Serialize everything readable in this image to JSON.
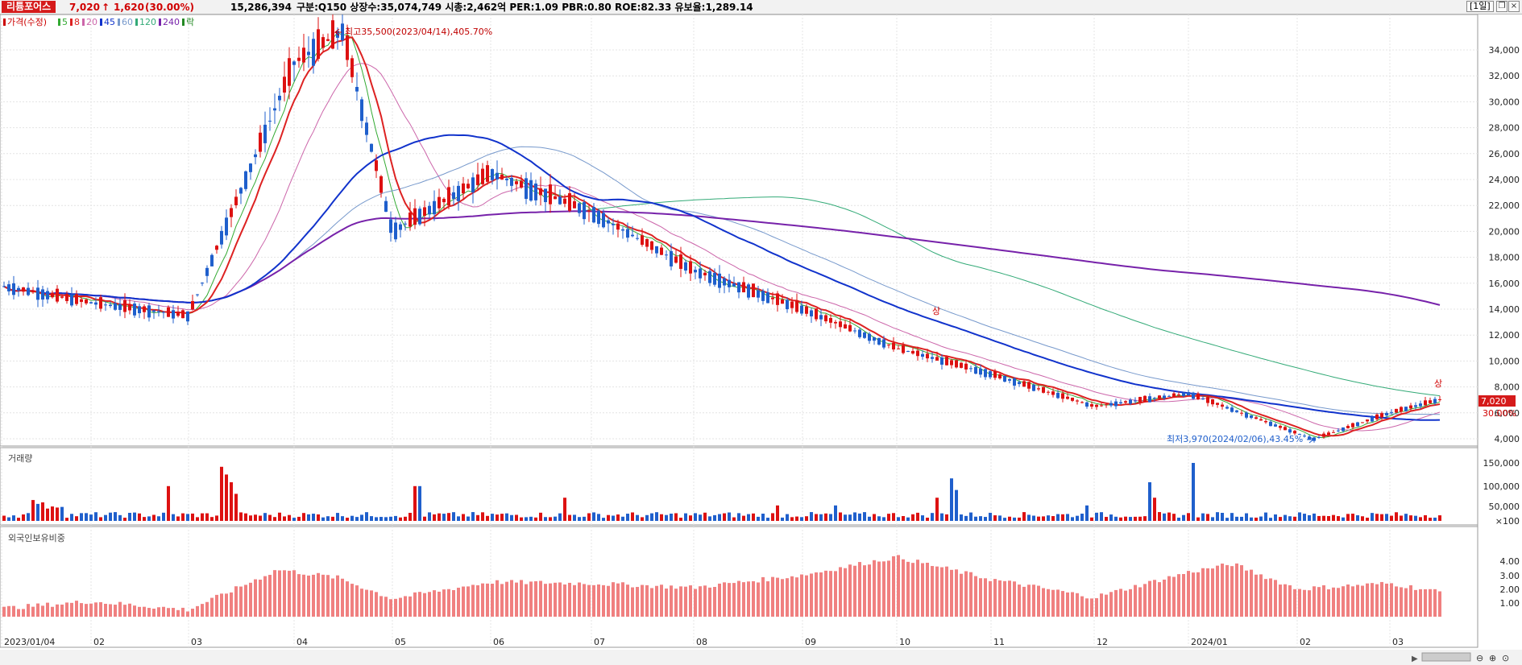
{
  "header": {
    "stock_name": "리튬포어스",
    "price": "7,020",
    "change_arrow": "↑",
    "change": "1,620",
    "change_pct": "(30.00%)",
    "volume": "15,286,394",
    "info": "구분:Q150 상장수:35,074,749 시총:2,462억 PER:1.09 PBR:0.80 ROE:82.33 유보율:1,289.14",
    "period": "[1일]",
    "buttons": [
      "restore-icon",
      "close-icon"
    ]
  },
  "price_panel": {
    "legend": [
      {
        "label": "가격(수정)",
        "color": "#cc0000"
      },
      {
        "label": "5",
        "color": "#33aa33"
      },
      {
        "label": "8",
        "color": "#dd2222"
      },
      {
        "label": "20",
        "color": "#cc66aa"
      },
      {
        "label": "45",
        "color": "#1133cc"
      },
      {
        "label": "60",
        "color": "#7799cc"
      },
      {
        "label": "120",
        "color": "#33aa77"
      },
      {
        "label": "240",
        "color": "#7722aa"
      },
      {
        "label": "락",
        "color": "#228822"
      }
    ],
    "y_ticks": [
      "34,000",
      "32,000",
      "30,000",
      "28,000",
      "26,000",
      "24,000",
      "22,000",
      "20,000",
      "18,000",
      "16,000",
      "14,000",
      "12,000",
      "10,000",
      "8,000",
      "6,000",
      "4,000"
    ],
    "high_label": "최고35,500(2023/04/14),405.70%",
    "low_label": "최저3,970(2024/02/06),43.45%",
    "last_price_tag": "7,020",
    "last_pct_tag": "30.00%",
    "limit_up_marks": [
      "상",
      "상"
    ]
  },
  "volume_panel": {
    "title": "거래량",
    "y_ticks": [
      "150,000",
      "100,000",
      "50,000",
      "×100"
    ]
  },
  "foreign_panel": {
    "title": "외국인보유비중",
    "y_ticks": [
      "4.00",
      "3.00",
      "2.00",
      "1.00"
    ]
  },
  "x_axis": {
    "labels": [
      "2023/01/04",
      "02",
      "03",
      "04",
      "05",
      "06",
      "07",
      "08",
      "09",
      "10",
      "11",
      "12",
      "2024/01",
      "02",
      "03"
    ]
  },
  "colors": {
    "up": "#dd1111",
    "down": "#1f5fcc",
    "foreign_bar": "#f08080",
    "ma240": "#7722aa",
    "ma45": "#1133cc",
    "ma120": "#33aa77"
  },
  "chart_data": {
    "type": "candlestick",
    "series_price_keypoints": [
      {
        "x": "2023/01/04",
        "y": 15800
      },
      {
        "x": "2023/02",
        "y": 14500
      },
      {
        "x": "2023/03",
        "y": 13500
      },
      {
        "x": "2023/04",
        "y": 33000
      },
      {
        "x": "2023/04/14",
        "y": 35500
      },
      {
        "x": "2023/05",
        "y": 20000
      },
      {
        "x": "2023/06",
        "y": 24500
      },
      {
        "x": "2023/07",
        "y": 21500
      },
      {
        "x": "2023/08",
        "y": 17000
      },
      {
        "x": "2023/09",
        "y": 14000
      },
      {
        "x": "2023/10",
        "y": 11000
      },
      {
        "x": "2023/11",
        "y": 9000
      },
      {
        "x": "2023/12",
        "y": 6500
      },
      {
        "x": "2024/01",
        "y": 7500
      },
      {
        "x": "2024/02/06",
        "y": 3970
      },
      {
        "x": "2024/03",
        "y": 6000
      },
      {
        "x": "last",
        "y": 7020
      }
    ],
    "ylim": [
      3500,
      35500
    ]
  }
}
